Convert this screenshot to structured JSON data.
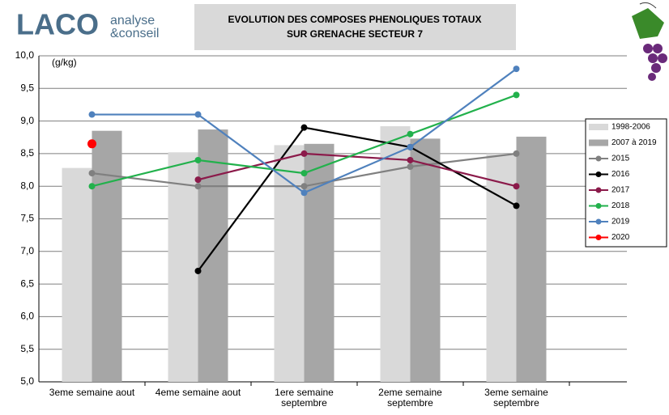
{
  "logo": {
    "mark": "LACO",
    "line1": "analyse",
    "line2": "&conseil"
  },
  "chart_data": {
    "type": "bar-line",
    "title": [
      "EVOLUTION DES COMPOSES PHENOLIQUES TOTAUX",
      "SUR GRENACHE SECTEUR 7"
    ],
    "y_label": "(g/kg)",
    "categories": [
      "3eme semaine aout",
      "4eme semaine aout",
      "1ere semaine septembre",
      "2eme semaine septembre",
      "3eme semaine septembre"
    ],
    "ylim": [
      5,
      10
    ],
    "yticks": [
      {
        "value": 5,
        "label": "5,0"
      },
      {
        "value": 5.5,
        "label": "5,5"
      },
      {
        "value": 6,
        "label": "6,0"
      },
      {
        "value": 6.5,
        "label": "6,5"
      },
      {
        "value": 7,
        "label": "7,0"
      },
      {
        "value": 7.5,
        "label": "7,5"
      },
      {
        "value": 8,
        "label": "8,0"
      },
      {
        "value": 8.5,
        "label": "8,5"
      },
      {
        "value": 9,
        "label": "9,0"
      },
      {
        "value": 9.5,
        "label": "9,5"
      },
      {
        "value": 10,
        "label": "10,0"
      }
    ],
    "grid": true,
    "legend": "right",
    "series": [
      {
        "name": "1998-2006",
        "kind": "bar",
        "color": "#d9d9d9",
        "values": [
          8.28,
          8.52,
          8.63,
          8.92,
          8.5
        ]
      },
      {
        "name": "2007 à 2019",
        "kind": "bar",
        "color": "#a6a6a6",
        "values": [
          8.85,
          8.87,
          8.65,
          8.73,
          8.76
        ]
      },
      {
        "name": "2015",
        "kind": "line",
        "color": "#808080",
        "values": [
          8.2,
          8.0,
          8.0,
          8.3,
          8.5
        ]
      },
      {
        "name": "2016",
        "kind": "line",
        "color": "#000000",
        "values": [
          null,
          6.7,
          8.9,
          8.6,
          7.7
        ]
      },
      {
        "name": "2017",
        "kind": "line",
        "color": "#8b1a4a",
        "values": [
          null,
          8.1,
          8.5,
          8.4,
          8.0
        ]
      },
      {
        "name": "2018",
        "kind": "line",
        "color": "#22b14c",
        "values": [
          8.0,
          8.4,
          8.2,
          8.8,
          9.4
        ]
      },
      {
        "name": "2019",
        "kind": "line",
        "color": "#4f81bd",
        "values": [
          9.1,
          9.1,
          7.9,
          8.6,
          9.8
        ]
      },
      {
        "name": "2020",
        "kind": "line",
        "color": "#ff0000",
        "values": [
          8.65,
          null,
          null,
          null,
          null
        ]
      }
    ]
  }
}
